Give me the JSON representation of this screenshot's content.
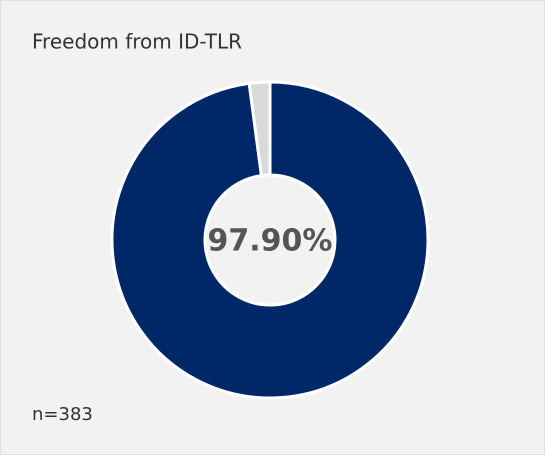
{
  "chart_data": {
    "type": "pie",
    "title": "Freedom from ID-TLR",
    "categories": [
      null,
      null
    ],
    "values": [
      97.9,
      2.1
    ],
    "value_labels": [
      "97.90%",
      null
    ],
    "colors": [
      "#002868",
      "#d9d9d9"
    ],
    "footnote": "n=383"
  }
}
